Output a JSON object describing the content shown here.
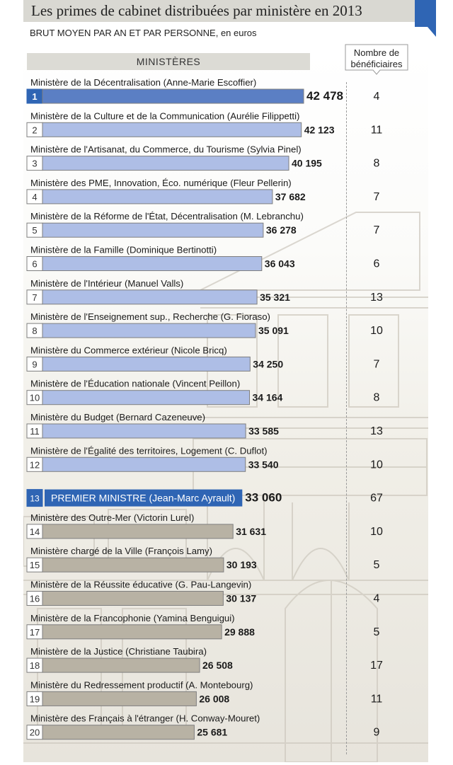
{
  "header": {
    "title": "Les primes de cabinet distribuées par ministère en 2013",
    "subtitle_main": "BRUT MOYEN PAR AN ET PAR PERSONNE",
    "subtitle_unit": ", en euros",
    "column_label": "MINISTÈRES",
    "count_label_line1": "Nombre de",
    "count_label_line2": "bénéficiaires"
  },
  "colors": {
    "top_bar": "#5b7fc4",
    "blue_bar": "#aebee6",
    "highlight_bar": "#2f65b4",
    "grey_bar": "#b8b2a4",
    "bar_border": "#7f7f7f"
  },
  "chart_data": {
    "type": "bar",
    "orientation": "horizontal",
    "title": "Les primes de cabinet distribuées par ministère en 2013",
    "unit": "euros",
    "xlim": [
      0,
      42478
    ],
    "categories": [
      "Ministère de la Décentralisation (Anne-Marie Escoffier)",
      "Ministère de la Culture et de la Communication (Aurélie Filippetti)",
      "Ministère de l'Artisanat, du Commerce, du Tourisme (Sylvia Pinel)",
      "Ministère des PME, Innovation, Éco. numérique (Fleur Pellerin)",
      "Ministère de la Réforme de l'État, Décentralisation (M. Lebranchu)",
      "Ministère de la Famille (Dominique Bertinotti)",
      "Ministère de l'Intérieur (Manuel Valls)",
      "Ministère de l'Enseignement sup., Recherche (G. Fioraso)",
      "Ministère du Commerce extérieur (Nicole Bricq)",
      "Ministère de l'Éducation nationale (Vincent Peillon)",
      "Ministère du Budget (Bernard Cazeneuve)",
      "Ministère de l'Égalité des territoires, Logement (C. Duflot)",
      "PREMIER MINISTRE (Jean-Marc Ayrault)",
      "Ministère des Outre-Mer (Victorin Lurel)",
      "Ministère chargé de la Ville (François Lamy)",
      "Ministère de la Réussite éducative (G. Pau-Langevin)",
      "Ministère de la Francophonie (Yamina Benguigui)",
      "Ministère de la Justice (Christiane Taubira)",
      "Ministère du Redressement productif (A. Montebourg)",
      "Ministère des Français à l'étranger (H. Conway-Mouret)"
    ],
    "ranks": [
      "1",
      "2",
      "3",
      "4",
      "5",
      "6",
      "7",
      "8",
      "9",
      "10",
      "11",
      "12",
      "13",
      "14",
      "15",
      "16",
      "17",
      "18",
      "19",
      "20"
    ],
    "value_labels": [
      "42 478",
      "42 123",
      "40 195",
      "37 682",
      "36 278",
      "36 043",
      "35 321",
      "35 091",
      "34 250",
      "34 164",
      "33 585",
      "33 540",
      "33 060",
      "31 631",
      "30 193",
      "30 137",
      "29 888",
      "26 508",
      "26 008",
      "25 681"
    ],
    "series": [
      {
        "name": "Brut moyen par an et par personne (euros)",
        "values": [
          42478,
          42123,
          40195,
          37682,
          36278,
          36043,
          35321,
          35091,
          34250,
          34164,
          33585,
          33540,
          33060,
          31631,
          30193,
          30137,
          29888,
          26508,
          26008,
          25681
        ]
      },
      {
        "name": "Nombre de bénéficiaires",
        "values": [
          4,
          11,
          8,
          7,
          7,
          6,
          13,
          10,
          7,
          8,
          13,
          10,
          67,
          10,
          5,
          4,
          5,
          17,
          11,
          9
        ]
      }
    ],
    "groups": [
      "top",
      "blue",
      "blue",
      "blue",
      "blue",
      "blue",
      "blue",
      "blue",
      "blue",
      "blue",
      "blue",
      "blue",
      "highlight",
      "grey",
      "grey",
      "grey",
      "grey",
      "grey",
      "grey",
      "grey"
    ]
  }
}
